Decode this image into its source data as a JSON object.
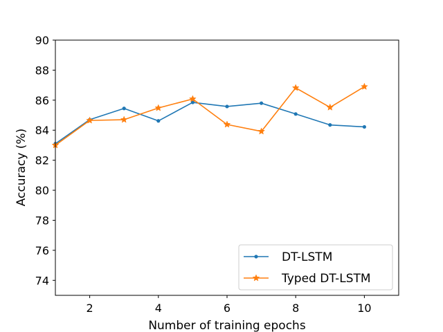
{
  "chart_data": {
    "type": "line",
    "title": "",
    "xlabel": "Number of training epochs",
    "ylabel": "Accuracy (%)",
    "xlim": [
      1,
      11
    ],
    "ylim": [
      73,
      90
    ],
    "xticks": [
      2,
      4,
      6,
      8,
      10
    ],
    "yticks": [
      74,
      76,
      78,
      80,
      82,
      84,
      86,
      88,
      90
    ],
    "grid": false,
    "legend_position": "lower-right",
    "series": [
      {
        "name": "DT-LSTM",
        "color": "#1f77b4",
        "marker": "circle",
        "x": [
          1,
          2,
          3,
          4,
          5,
          6,
          7,
          8,
          9,
          10
        ],
        "values": [
          83.1,
          84.7,
          85.45,
          84.62,
          85.85,
          85.58,
          85.8,
          85.08,
          84.35,
          84.22
        ]
      },
      {
        "name": "Typed DT-LSTM",
        "color": "#ff7f0e",
        "marker": "star",
        "x": [
          1,
          2,
          3,
          4,
          5,
          6,
          7,
          8,
          9,
          10
        ],
        "values": [
          83.0,
          84.65,
          84.7,
          85.48,
          86.08,
          84.38,
          83.92,
          86.82,
          85.52,
          86.9
        ]
      }
    ]
  }
}
